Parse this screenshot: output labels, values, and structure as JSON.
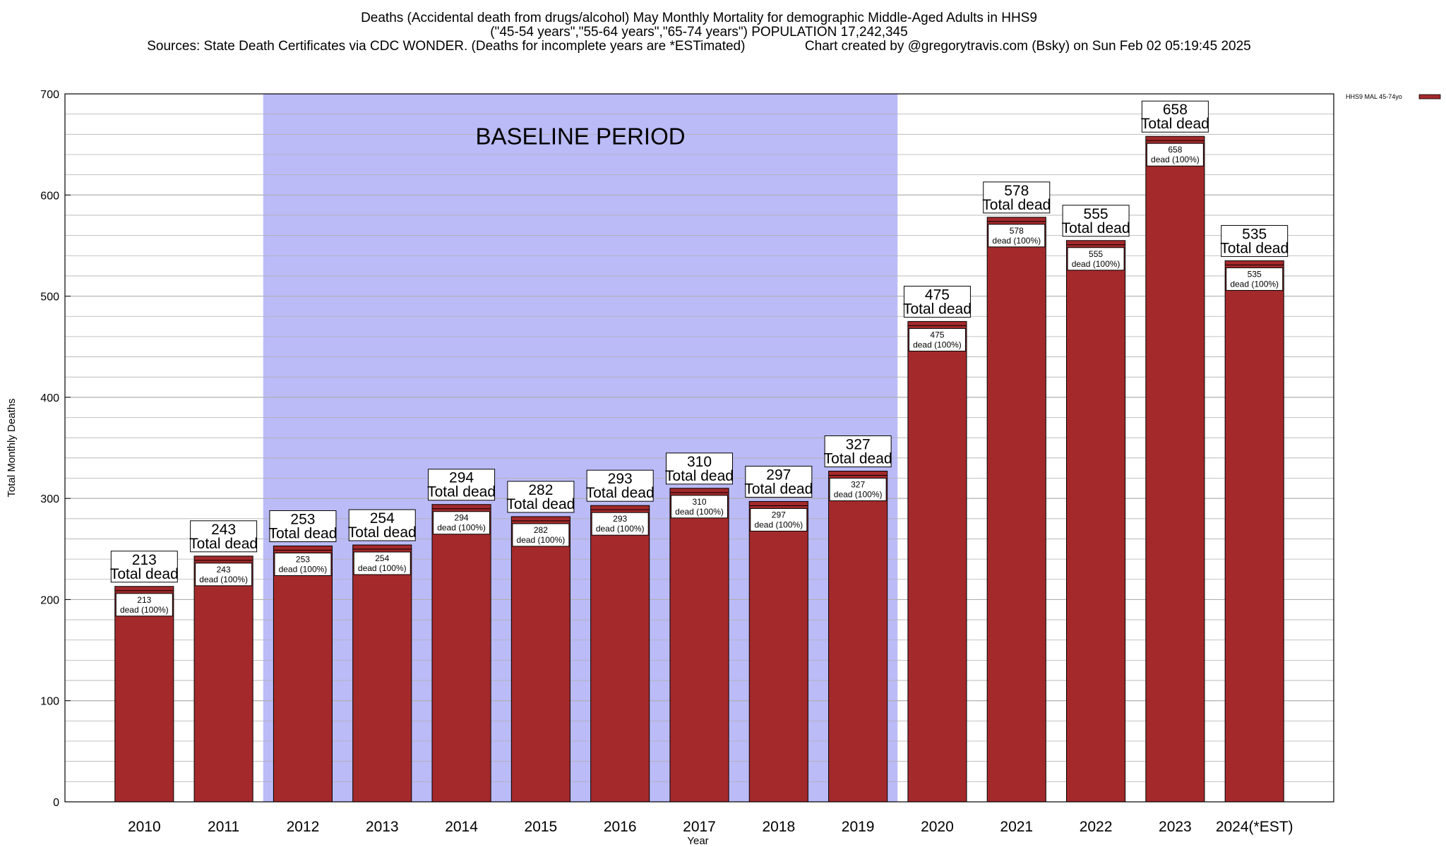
{
  "title_lines": [
    "Deaths (Accidental death from drugs/alcohol) May Monthly Mortality for demographic Middle-Aged Adults in HHS9",
    "(\"45-54 years\",\"55-64 years\",\"65-74 years\") POPULATION 17,242,345",
    "Sources: State Death Certificates via CDC WONDER. (Deaths for incomplete years are *ESTimated)                Chart created by @gregorytravis.com (Bsky) on Sun Feb 02 05:19:45 2025"
  ],
  "colors": {
    "bar": "#a4292b",
    "baseline_shade": "#bbbbf8",
    "grid": "#b0b0b0",
    "axis": "#000000"
  },
  "chart_data": {
    "type": "bar",
    "categories": [
      "2010",
      "2011",
      "2012",
      "2013",
      "2014",
      "2015",
      "2016",
      "2017",
      "2018",
      "2019",
      "2020",
      "2021",
      "2022",
      "2023",
      "2024(*EST)"
    ],
    "series": [
      {
        "name": "HHS9 MAL 45-74yo",
        "values": [
          213,
          243,
          253,
          254,
          294,
          282,
          293,
          310,
          297,
          327,
          475,
          578,
          555,
          658,
          535
        ]
      }
    ],
    "xlabel": "Year",
    "ylabel": "Total Monthly Deaths",
    "ylim": [
      0,
      700
    ],
    "yticks": [
      0,
      100,
      200,
      300,
      400,
      500,
      600,
      700
    ],
    "grid": true,
    "legend_position": "top-right",
    "baseline_period": {
      "label": "BASELINE PERIOD",
      "from_category": "2012",
      "to_category": "2019"
    },
    "total_label": "Total dead",
    "segment_label": "dead (100%)"
  }
}
